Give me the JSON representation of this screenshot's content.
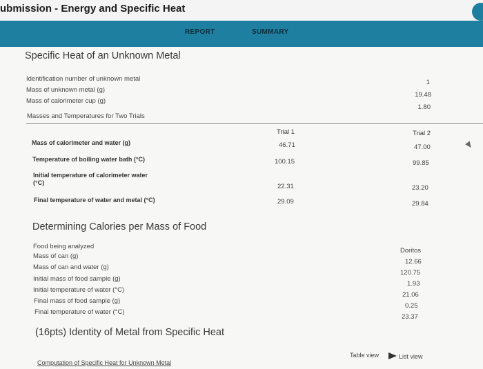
{
  "window": {
    "title": "ubmission - Energy and Specific Heat"
  },
  "tabs": [
    {
      "label": "REPORT"
    },
    {
      "label": "SUMMARY"
    }
  ],
  "specific_heat": {
    "title": "Specific Heat of an Unknown Metal",
    "rows": [
      {
        "label": "Identification number of unknown metal",
        "value": "1"
      },
      {
        "label": "Mass of unknown metal (g)",
        "value": "19.48"
      },
      {
        "label": "Mass of calorimeter cup (g)",
        "value": "1.80"
      },
      {
        "label": "Masses and Temperatures for Two Trials",
        "value": ""
      }
    ],
    "trial_headers": [
      "Trial 1",
      "Trial 2"
    ],
    "trial_rows": [
      {
        "label": "Mass of calorimeter and water (g)",
        "t1": "46.71",
        "t2": "47.00"
      },
      {
        "label": "Temperature of boiling water bath (°C)",
        "t1": "100.15",
        "t2": "99.85"
      },
      {
        "label_line1": "Initial temperature of calorimeter water",
        "label_line2": "(°C)",
        "t1": "22.31",
        "t2": "23.20"
      },
      {
        "label": "Final temperature of water and metal (°C)",
        "t1": "29.09",
        "t2": "29.84"
      }
    ]
  },
  "calories": {
    "title": "Determining Calories per Mass of Food",
    "rows": [
      {
        "label": "Food being analyzed",
        "value": "Doritos"
      },
      {
        "label": "Mass of can (g)",
        "value": "12.66"
      },
      {
        "label": "Mass of can and water (g)",
        "value": "120.75"
      },
      {
        "label": "Initial mass of food sample (g)",
        "value": "1.93"
      },
      {
        "label": "Initial temperature of water (°C)",
        "value": "21.06"
      },
      {
        "label": "Final mass of food sample (g)",
        "value": "0.25"
      },
      {
        "label": "Final temperature of water (°C)",
        "value": "23.37"
      }
    ]
  },
  "identity": {
    "title": "(16pts) Identity of Metal from Specific Heat",
    "table_view": "Table view",
    "list_view": "List view",
    "computation_label": "Computation of Specific Heat for Unknown Metal"
  },
  "colors": {
    "header_bar": "#1e7fa0",
    "background": "#f7f7f6"
  }
}
